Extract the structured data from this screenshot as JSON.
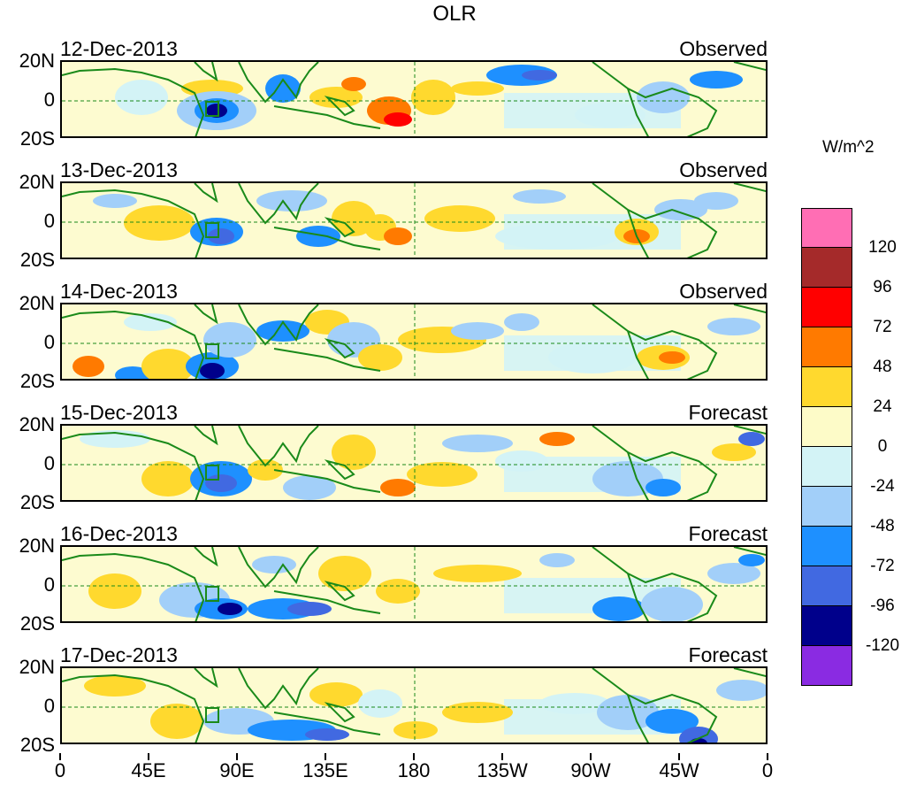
{
  "title": "OLR",
  "units": "W/m^2",
  "panels": [
    {
      "date": "12-Dec-2013",
      "kind": "Observed"
    },
    {
      "date": "13-Dec-2013",
      "kind": "Observed"
    },
    {
      "date": "14-Dec-2013",
      "kind": "Observed"
    },
    {
      "date": "15-Dec-2013",
      "kind": "Forecast"
    },
    {
      "date": "16-Dec-2013",
      "kind": "Forecast"
    },
    {
      "date": "17-Dec-2013",
      "kind": "Forecast"
    }
  ],
  "lat_labels": [
    "20N",
    "0",
    "20S"
  ],
  "lon_labels": [
    "0",
    "45E",
    "90E",
    "135E",
    "180",
    "135W",
    "90W",
    "45W",
    "0"
  ],
  "colorbar": {
    "colors": [
      "#ff6eb4",
      "#a52a2a",
      "#ff0000",
      "#ff7a00",
      "#ffd92e",
      "#fdfbc8",
      "#d3f3f6",
      "#a2cff9",
      "#1e90ff",
      "#4169e1",
      "#00008b",
      "#8a2be2"
    ],
    "labels": [
      "120",
      "96",
      "72",
      "48",
      "24",
      "0",
      "-24",
      "-48",
      "-72",
      "-96",
      "-120"
    ]
  },
  "palette": {
    "pos24": "#ffd92e",
    "pos48": "#ff7a00",
    "pos72": "#ff0000",
    "neg24": "#d3f3f6",
    "neg48": "#a2cff9",
    "neg72": "#1e90ff",
    "neg96": "#4169e1",
    "neg120": "#00008b",
    "land": "#1a8a1a"
  }
}
